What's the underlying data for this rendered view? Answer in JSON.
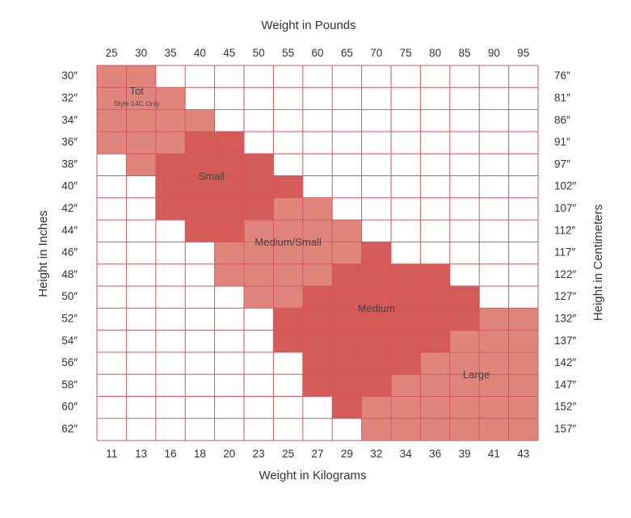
{
  "chart_data": {
    "type": "heatmap",
    "title": "",
    "top_axis": {
      "label": "Weight in Pounds",
      "ticks": [
        "25",
        "30",
        "35",
        "40",
        "45",
        "50",
        "55",
        "60",
        "65",
        "70",
        "75",
        "80",
        "85",
        "90",
        "95"
      ]
    },
    "bottom_axis": {
      "label": "Weight in Kilograms",
      "ticks": [
        "11",
        "13",
        "16",
        "18",
        "20",
        "23",
        "25",
        "27",
        "29",
        "32",
        "34",
        "36",
        "39",
        "41",
        "43"
      ]
    },
    "left_axis": {
      "label": "Height in Inches",
      "ticks": [
        "30″",
        "32″",
        "34″",
        "36″",
        "38″",
        "40″",
        "42″",
        "44″",
        "46″",
        "48″",
        "50″",
        "52″",
        "54″",
        "56″",
        "58″",
        "60″",
        "62″"
      ]
    },
    "right_axis": {
      "label": "Height in Centimeters",
      "ticks": [
        "76″",
        "81″",
        "86″",
        "91″",
        "97″",
        "102″",
        "107″",
        "112″",
        "117″",
        "122″",
        "127″",
        "132″",
        "137″",
        "142″",
        "147″",
        "152″",
        "157″"
      ]
    },
    "columns": 15,
    "rows": 17,
    "colors": {
      "light": "#e0857c",
      "dark": "#d55b58",
      "grid": "#d3565f",
      "empty": "#ffffff"
    },
    "zones": [
      {
        "name": "Tot",
        "sub": "Style 14C Only",
        "tone": "light",
        "label_row": 1.2,
        "label_col": 1.35,
        "cells": [
          [
            0,
            0
          ],
          [
            0,
            1
          ],
          [
            1,
            0
          ],
          [
            1,
            1
          ],
          [
            1,
            2
          ],
          [
            2,
            0
          ],
          [
            2,
            1
          ],
          [
            2,
            2
          ],
          [
            2,
            3
          ],
          [
            3,
            0
          ],
          [
            3,
            1
          ],
          [
            3,
            2
          ],
          [
            4,
            1
          ]
        ]
      },
      {
        "name": "Small",
        "sub": "",
        "tone": "dark",
        "label_row": 5.05,
        "label_col": 3.9,
        "cells": [
          [
            3,
            3
          ],
          [
            3,
            4
          ],
          [
            4,
            2
          ],
          [
            4,
            3
          ],
          [
            4,
            4
          ],
          [
            4,
            5
          ],
          [
            5,
            2
          ],
          [
            5,
            3
          ],
          [
            5,
            4
          ],
          [
            5,
            5
          ],
          [
            5,
            6
          ],
          [
            6,
            2
          ],
          [
            6,
            3
          ],
          [
            6,
            4
          ],
          [
            6,
            5
          ],
          [
            7,
            3
          ],
          [
            7,
            4
          ]
        ]
      },
      {
        "name": "Medium/Small",
        "sub": "",
        "tone": "light",
        "label_row": 8.05,
        "label_col": 6.5,
        "cells": [
          [
            6,
            6
          ],
          [
            6,
            7
          ],
          [
            7,
            5
          ],
          [
            7,
            6
          ],
          [
            7,
            7
          ],
          [
            7,
            8
          ],
          [
            8,
            4
          ],
          [
            8,
            5
          ],
          [
            8,
            6
          ],
          [
            8,
            7
          ],
          [
            8,
            8
          ],
          [
            9,
            4
          ],
          [
            9,
            5
          ],
          [
            9,
            6
          ],
          [
            9,
            7
          ],
          [
            10,
            5
          ],
          [
            10,
            6
          ]
        ]
      },
      {
        "name": "Medium",
        "sub": "",
        "tone": "dark",
        "label_row": 11.05,
        "label_col": 9.5,
        "cells": [
          [
            8,
            9
          ],
          [
            9,
            8
          ],
          [
            9,
            9
          ],
          [
            9,
            10
          ],
          [
            9,
            11
          ],
          [
            10,
            7
          ],
          [
            10,
            8
          ],
          [
            10,
            9
          ],
          [
            10,
            10
          ],
          [
            10,
            11
          ],
          [
            10,
            12
          ],
          [
            11,
            6
          ],
          [
            11,
            7
          ],
          [
            11,
            8
          ],
          [
            11,
            9
          ],
          [
            11,
            10
          ],
          [
            11,
            11
          ],
          [
            11,
            12
          ],
          [
            12,
            6
          ],
          [
            12,
            7
          ],
          [
            12,
            8
          ],
          [
            12,
            9
          ],
          [
            12,
            10
          ],
          [
            12,
            11
          ],
          [
            13,
            7
          ],
          [
            13,
            8
          ],
          [
            13,
            9
          ],
          [
            13,
            10
          ],
          [
            14,
            7
          ],
          [
            14,
            8
          ],
          [
            14,
            9
          ],
          [
            15,
            8
          ]
        ]
      },
      {
        "name": "Large",
        "sub": "",
        "tone": "light",
        "label_row": 14.05,
        "label_col": 12.9,
        "cells": [
          [
            11,
            13
          ],
          [
            11,
            14
          ],
          [
            12,
            12
          ],
          [
            12,
            13
          ],
          [
            12,
            14
          ],
          [
            13,
            11
          ],
          [
            13,
            12
          ],
          [
            13,
            13
          ],
          [
            13,
            14
          ],
          [
            14,
            10
          ],
          [
            14,
            11
          ],
          [
            14,
            12
          ],
          [
            14,
            13
          ],
          [
            14,
            14
          ],
          [
            15,
            9
          ],
          [
            15,
            10
          ],
          [
            15,
            11
          ],
          [
            15,
            12
          ],
          [
            15,
            13
          ],
          [
            15,
            14
          ],
          [
            16,
            9
          ],
          [
            16,
            10
          ],
          [
            16,
            11
          ],
          [
            16,
            12
          ],
          [
            16,
            13
          ],
          [
            16,
            14
          ]
        ]
      }
    ]
  }
}
